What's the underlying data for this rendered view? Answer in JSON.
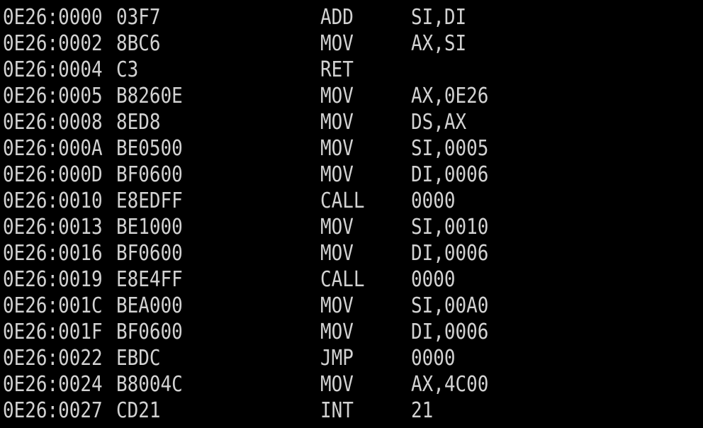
{
  "terminal": {
    "rows": [
      {
        "address": "0E26:0000",
        "bytes": "03F7",
        "mnemonic": "ADD",
        "operands": "SI,DI"
      },
      {
        "address": "0E26:0002",
        "bytes": "8BC6",
        "mnemonic": "MOV",
        "operands": "AX,SI"
      },
      {
        "address": "0E26:0004",
        "bytes": "C3",
        "mnemonic": "RET",
        "operands": ""
      },
      {
        "address": "0E26:0005",
        "bytes": "B8260E",
        "mnemonic": "MOV",
        "operands": "AX,0E26"
      },
      {
        "address": "0E26:0008",
        "bytes": "8ED8",
        "mnemonic": "MOV",
        "operands": "DS,AX"
      },
      {
        "address": "0E26:000A",
        "bytes": "BE0500",
        "mnemonic": "MOV",
        "operands": "SI,0005"
      },
      {
        "address": "0E26:000D",
        "bytes": "BF0600",
        "mnemonic": "MOV",
        "operands": "DI,0006"
      },
      {
        "address": "0E26:0010",
        "bytes": "E8EDFF",
        "mnemonic": "CALL",
        "operands": "0000"
      },
      {
        "address": "0E26:0013",
        "bytes": "BE1000",
        "mnemonic": "MOV",
        "operands": "SI,0010"
      },
      {
        "address": "0E26:0016",
        "bytes": "BF0600",
        "mnemonic": "MOV",
        "operands": "DI,0006"
      },
      {
        "address": "0E26:0019",
        "bytes": "E8E4FF",
        "mnemonic": "CALL",
        "operands": "0000"
      },
      {
        "address": "0E26:001C",
        "bytes": "BEA000",
        "mnemonic": "MOV",
        "operands": "SI,00A0"
      },
      {
        "address": "0E26:001F",
        "bytes": "BF0600",
        "mnemonic": "MOV",
        "operands": "DI,0006"
      },
      {
        "address": "0E26:0022",
        "bytes": "EBDC",
        "mnemonic": "JMP",
        "operands": "0000"
      },
      {
        "address": "0E26:0024",
        "bytes": "B8004C",
        "mnemonic": "MOV",
        "operands": "AX,4C00"
      },
      {
        "address": "0E26:0027",
        "bytes": "CD21",
        "mnemonic": "INT",
        "operands": "21"
      }
    ],
    "colors": {
      "background": "#000000",
      "foreground": "#d2d2d2"
    }
  }
}
